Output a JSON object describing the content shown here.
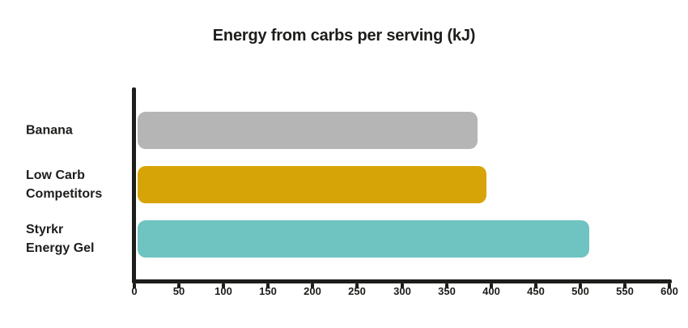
{
  "title": "Energy from carbs per serving (kJ)",
  "colors": {
    "background": "#ffffff",
    "text": "#1d1d1b",
    "axis": "#1d1d1b",
    "bar_banana": "#b5b5b6",
    "bar_low_carb": "#d7a408",
    "bar_styrkr": "#6fc3c0"
  },
  "chart_data": {
    "type": "bar",
    "orientation": "horizontal",
    "title": "Energy from carbs per serving (kJ)",
    "categories": [
      "Banana",
      "Low Carb Competitors",
      "Styrkr Energy Gel"
    ],
    "category_label_lines": [
      [
        "Banana"
      ],
      [
        "Low Carb",
        "Competitors"
      ],
      [
        "Styrkr",
        "Energy Gel"
      ]
    ],
    "values": [
      385,
      395,
      510
    ],
    "bar_colors": [
      "#b5b5b6",
      "#d7a408",
      "#6fc3c0"
    ],
    "xlabel": "",
    "ylabel": "",
    "xlim": [
      0,
      600
    ],
    "x_ticks": [
      0,
      50,
      100,
      150,
      200,
      250,
      300,
      350,
      400,
      450,
      500,
      550,
      600
    ],
    "grid": false,
    "legend": false
  }
}
